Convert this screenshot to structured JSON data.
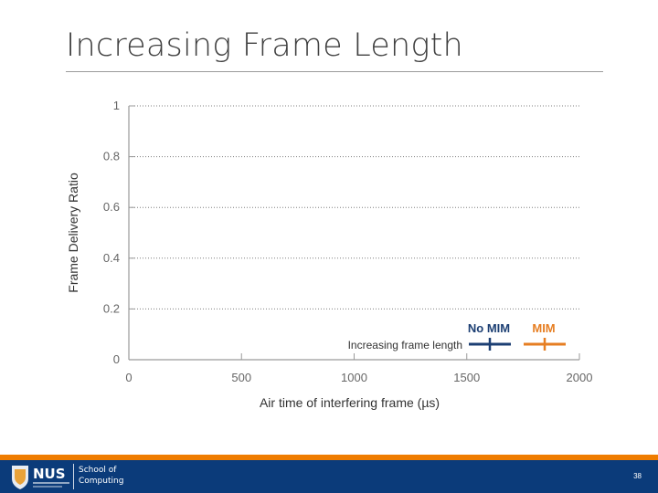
{
  "slide": {
    "title": "Increasing Frame Length",
    "page_number": "38"
  },
  "footer": {
    "logo_text": "NUS",
    "school_line1": "School of",
    "school_line2": "Computing"
  },
  "colors": {
    "no_mim": "#1c3f73",
    "mim": "#e67e22",
    "gridline": "#7f7f7f",
    "axis": "#9a9a9a",
    "footer_bar": "#0b3b7a",
    "footer_accent": "#ef7c00"
  },
  "chart_data": {
    "type": "line",
    "title": "",
    "xlabel": "Air time of interfering frame (µs)",
    "ylabel": "Frame Delivery Ratio",
    "xlim": [
      0,
      2000
    ],
    "ylim": [
      0,
      1
    ],
    "xticks": [
      0,
      500,
      1000,
      1500,
      2000
    ],
    "xtick_labels": [
      "0",
      "500",
      "1000",
      "1500",
      "2000"
    ],
    "yticks": [
      0,
      0.2,
      0.4,
      0.6,
      0.8,
      1
    ],
    "ytick_labels": [
      "0",
      "0.2",
      "0.4",
      "0.6",
      "0.8",
      "1"
    ],
    "grid": "horizontal-dotted",
    "series": [
      {
        "name": "No MIM",
        "values": []
      },
      {
        "name": "MIM",
        "values": []
      }
    ],
    "legend": {
      "position": "bottom-right",
      "caption": "Increasing frame length",
      "entries": [
        "No MIM",
        "MIM"
      ]
    }
  }
}
